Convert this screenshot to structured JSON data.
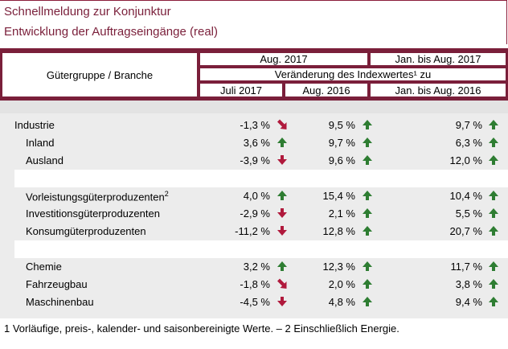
{
  "title": {
    "line1": "Schnellmeldung zur Konjunktur",
    "line2": "Entwicklung der Auftragseingänge (real)"
  },
  "header": {
    "group_label": "Gütergruppe / Branche",
    "period1": "Aug. 2017",
    "period2": "Jan. bis Aug. 2017",
    "change_label": "Veränderung des Indexwertes¹ zu",
    "col1": "Juli 2017",
    "col2": "Aug. 2016",
    "col3": "Jan. bis Aug. 2016"
  },
  "rows": [
    {
      "label": "Industrie",
      "v1": "-1,3 %",
      "d1": "down-right",
      "v2": "9,5 %",
      "d2": "up",
      "v3": "9,7 %",
      "d3": "up"
    },
    {
      "label": "Inland",
      "v1": "3,6 %",
      "d1": "up",
      "v2": "9,7 %",
      "d2": "up",
      "v3": "6,3 %",
      "d3": "up"
    },
    {
      "label": "Ausland",
      "v1": "-3,9 %",
      "d1": "down",
      "v2": "9,6 %",
      "d2": "up",
      "v3": "12,0 %",
      "d3": "up"
    },
    {
      "label": "Vorleistungsgüterproduzenten",
      "sup": "2",
      "v1": "4,0 %",
      "d1": "up",
      "v2": "15,4 %",
      "d2": "up",
      "v3": "10,4 %",
      "d3": "up"
    },
    {
      "label": "Investitionsgüterproduzenten",
      "v1": "-2,9 %",
      "d1": "down",
      "v2": "2,1 %",
      "d2": "up",
      "v3": "5,5 %",
      "d3": "up"
    },
    {
      "label": "Konsumgüterproduzenten",
      "v1": "-11,2 %",
      "d1": "down",
      "v2": "12,8 %",
      "d2": "up",
      "v3": "20,7 %",
      "d3": "up"
    },
    {
      "label": "Chemie",
      "v1": "3,2 %",
      "d1": "up",
      "v2": "12,3 %",
      "d2": "up",
      "v3": "11,7 %",
      "d3": "up"
    },
    {
      "label": "Fahrzeugbau",
      "v1": "-1,8 %",
      "d1": "down-right",
      "v2": "2,0 %",
      "d2": "up",
      "v3": "3,8 %",
      "d3": "up"
    },
    {
      "label": "Maschinenbau",
      "v1": "-4,5 %",
      "d1": "down",
      "v2": "4,8 %",
      "d2": "up",
      "v3": "9,4 %",
      "d3": "up"
    }
  ],
  "footnote": "1 Vorläufige, preis-, kalender- und saisonbereinigte Werte. – 2 Einschließlich Energie.",
  "colors": {
    "accent": "#7a1f3a",
    "up": "#2e7d32",
    "down": "#b0193c",
    "band": "#ececec"
  }
}
